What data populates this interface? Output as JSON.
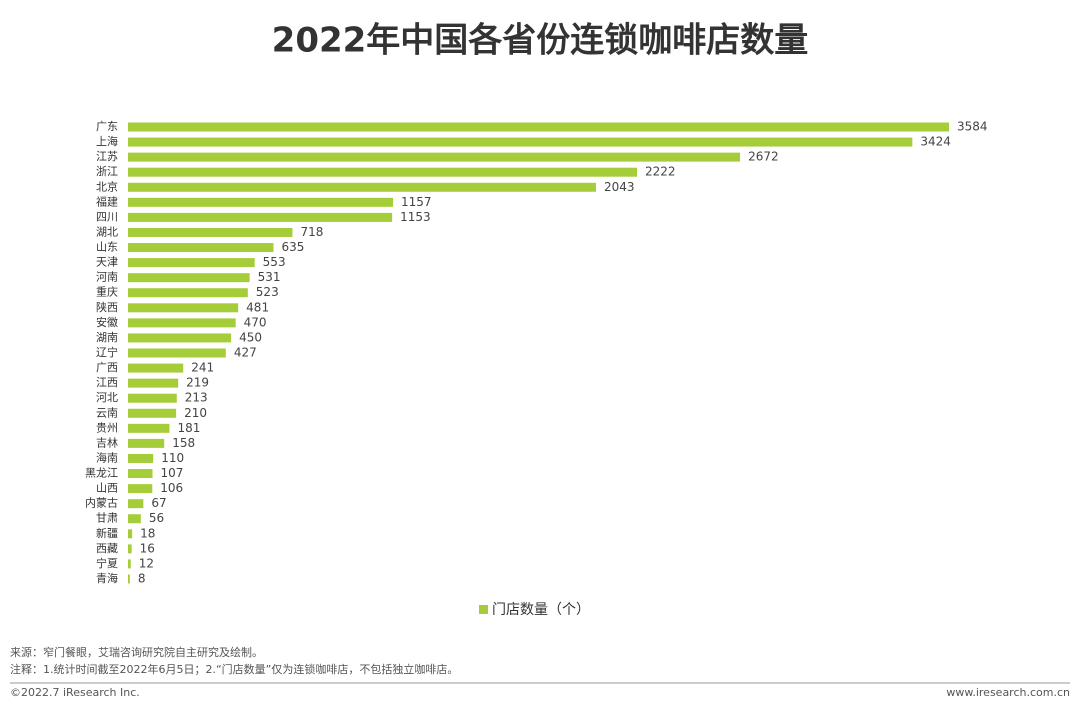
{
  "chart_data": {
    "type": "bar",
    "orientation": "horizontal",
    "title": "2022年中国各省份连锁咖啡店数量",
    "categories": [
      "广东",
      "上海",
      "江苏",
      "浙江",
      "北京",
      "福建",
      "四川",
      "湖北",
      "山东",
      "天津",
      "河南",
      "重庆",
      "陕西",
      "安徽",
      "湖南",
      "辽宁",
      "广西",
      "江西",
      "河北",
      "云南",
      "贵州",
      "吉林",
      "海南",
      "黑龙江",
      "山西",
      "内蒙古",
      "甘肃",
      "新疆",
      "西藏",
      "宁夏",
      "青海"
    ],
    "series": [
      {
        "name": "门店数量（个）",
        "color": "#a5cd39",
        "values": [
          3584,
          3424,
          2672,
          2222,
          2043,
          1157,
          1153,
          718,
          635,
          553,
          531,
          523,
          481,
          470,
          450,
          427,
          241,
          219,
          213,
          210,
          181,
          158,
          110,
          107,
          106,
          67,
          56,
          18,
          16,
          12,
          8
        ]
      }
    ]
  },
  "source": "来源：窄门餐眼，艾瑞咨询研究院自主研究及绘制。",
  "note": "注释：1.统计时间截至2022年6月5日；2.“门店数量”仅为连锁咖啡店，不包括独立咖啡店。",
  "copyright": "©2022.7 iResearch Inc.",
  "website": "www.iresearch.com.cn"
}
